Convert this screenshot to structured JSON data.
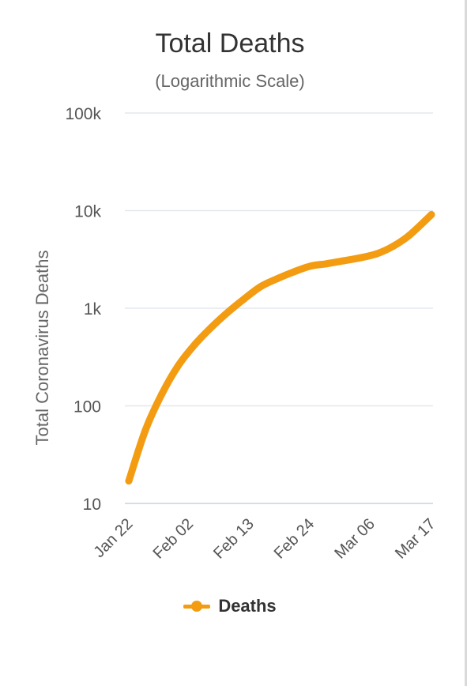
{
  "chart_data": {
    "type": "line",
    "title": "Total Deaths",
    "subtitle": "(Logarithmic Scale)",
    "ylabel": "Total Coronavirus Deaths",
    "xlabel": "",
    "yscale": "log",
    "ylim": [
      10,
      100000
    ],
    "y_ticks": [
      {
        "value": 10,
        "label": "10"
      },
      {
        "value": 100,
        "label": "100"
      },
      {
        "value": 1000,
        "label": "1k"
      },
      {
        "value": 10000,
        "label": "10k"
      },
      {
        "value": 100000,
        "label": "100k"
      }
    ],
    "x_tick_labels": [
      "Jan 22",
      "Feb 02",
      "Feb 13",
      "Feb 24",
      "Mar 06",
      "Mar 17"
    ],
    "grid": true,
    "legend_position": "bottom",
    "series": [
      {
        "name": "Deaths",
        "color": "#f39c12",
        "x": [
          "Jan 22",
          "Jan 25",
          "Jan 28",
          "Jan 31",
          "Feb 03",
          "Feb 06",
          "Feb 09",
          "Feb 12",
          "Feb 15",
          "Feb 18",
          "Feb 21",
          "Feb 24",
          "Feb 27",
          "Mar 01",
          "Mar 04",
          "Mar 07",
          "Mar 10",
          "Mar 13",
          "Mar 17"
        ],
        "y": [
          17,
          56,
          132,
          259,
          425,
          637,
          910,
          1250,
          1670,
          2010,
          2360,
          2700,
          2860,
          3060,
          3280,
          3600,
          4300,
          5600,
          9100
        ]
      }
    ]
  }
}
